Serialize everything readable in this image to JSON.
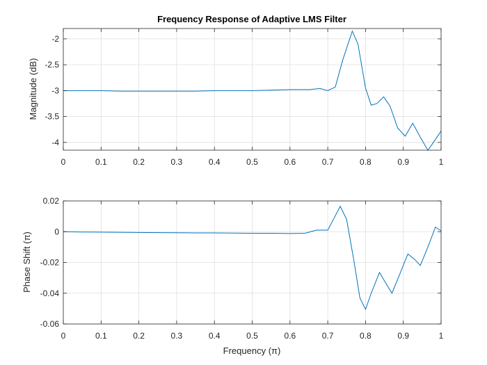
{
  "chart_data": [
    {
      "type": "line",
      "title": "Frequency Response of Adaptive LMS Filter",
      "xlabel": "",
      "ylabel": "Magnitude (dB)",
      "xlim": [
        0,
        1
      ],
      "ylim": [
        -4.15,
        -1.8
      ],
      "xticks": [
        0,
        0.1,
        0.2,
        0.3,
        0.4,
        0.5,
        0.6,
        0.7,
        0.8,
        0.9,
        1
      ],
      "xtick_labels": [
        "0",
        "0.1",
        "0.2",
        "0.3",
        "0.4",
        "0.5",
        "0.6",
        "0.7",
        "0.8",
        "0.9",
        "1"
      ],
      "yticks": [
        -4,
        -3.5,
        -3,
        -2.5,
        -2
      ],
      "ytick_labels": [
        "-4",
        "-3.5",
        "-3",
        "-2.5",
        "-2"
      ],
      "grid": true,
      "line_color": "#0072BD",
      "series": [
        {
          "x": [
            0,
            0.05,
            0.1,
            0.15,
            0.2,
            0.25,
            0.3,
            0.35,
            0.4,
            0.45,
            0.5,
            0.55,
            0.6,
            0.65,
            0.68,
            0.7,
            0.72,
            0.74,
            0.765,
            0.78,
            0.8,
            0.815,
            0.83,
            0.848,
            0.865,
            0.885,
            0.905,
            0.925,
            0.945,
            0.965,
            0.975,
            1
          ],
          "y": [
            -3.0,
            -3.0,
            -3.0,
            -3.01,
            -3.01,
            -3.01,
            -3.01,
            -3.01,
            -3.0,
            -3.0,
            -3.0,
            -2.99,
            -2.98,
            -2.98,
            -2.96,
            -3.0,
            -2.93,
            -2.4,
            -1.85,
            -2.1,
            -2.95,
            -3.28,
            -3.25,
            -3.12,
            -3.3,
            -3.72,
            -3.88,
            -3.63,
            -3.9,
            -4.15,
            -4.05,
            -3.78
          ]
        }
      ]
    },
    {
      "type": "line",
      "title": "",
      "xlabel": "Frequency (π)",
      "ylabel": "Phase Shift (π)",
      "xlim": [
        0,
        1
      ],
      "ylim": [
        -0.06,
        0.02
      ],
      "xticks": [
        0,
        0.1,
        0.2,
        0.3,
        0.4,
        0.5,
        0.6,
        0.7,
        0.8,
        0.9,
        1
      ],
      "xtick_labels": [
        "0",
        "0.1",
        "0.2",
        "0.3",
        "0.4",
        "0.5",
        "0.6",
        "0.7",
        "0.8",
        "0.9",
        "1"
      ],
      "yticks": [
        0.02,
        0,
        -0.02,
        -0.04,
        -0.06
      ],
      "ytick_labels": [
        "0.02",
        "0",
        "-0.02",
        "-0.04",
        "-0.06"
      ],
      "grid": true,
      "line_color": "#0072BD",
      "series": [
        {
          "x": [
            0,
            0.05,
            0.1,
            0.15,
            0.2,
            0.25,
            0.3,
            0.35,
            0.4,
            0.45,
            0.5,
            0.55,
            0.6,
            0.64,
            0.67,
            0.7,
            0.715,
            0.733,
            0.75,
            0.77,
            0.785,
            0.8,
            0.815,
            0.837,
            0.855,
            0.87,
            0.89,
            0.912,
            0.93,
            0.945,
            0.965,
            0.985,
            1
          ],
          "y": [
            0.0,
            -0.0002,
            -0.0003,
            -0.0004,
            -0.0005,
            -0.0006,
            -0.0007,
            -0.0008,
            -0.0008,
            -0.0009,
            -0.001,
            -0.001,
            -0.0012,
            -0.001,
            0.001,
            0.001,
            0.008,
            0.0165,
            0.008,
            -0.02,
            -0.043,
            -0.0505,
            -0.04,
            -0.0265,
            -0.034,
            -0.04,
            -0.028,
            -0.0145,
            -0.018,
            -0.022,
            -0.01,
            0.003,
            0.0005
          ]
        }
      ]
    }
  ]
}
